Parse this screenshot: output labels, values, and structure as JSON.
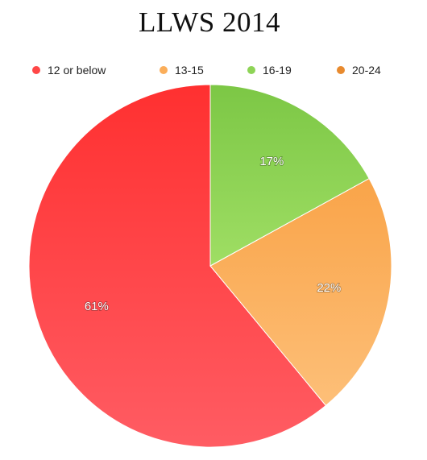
{
  "chart_data": {
    "type": "pie",
    "title": "LLWS 2014",
    "legend_position": "top",
    "categories": [
      "12 or below",
      "13-15",
      "16-19",
      "20-24"
    ],
    "values": [
      61,
      22,
      17,
      0
    ],
    "value_labels": [
      "61%",
      "22%",
      "17%",
      ""
    ],
    "colors": [
      "#ff4747",
      "#fbae5a",
      "#8ed457",
      "#e88a2e"
    ],
    "colors_light": [
      "#ff5c63",
      "#fdbf78",
      "#9fde64",
      "#ee9a44"
    ],
    "colors_dark": [
      "#ff3030",
      "#f9a449",
      "#7cc745",
      "#d97820"
    ]
  }
}
